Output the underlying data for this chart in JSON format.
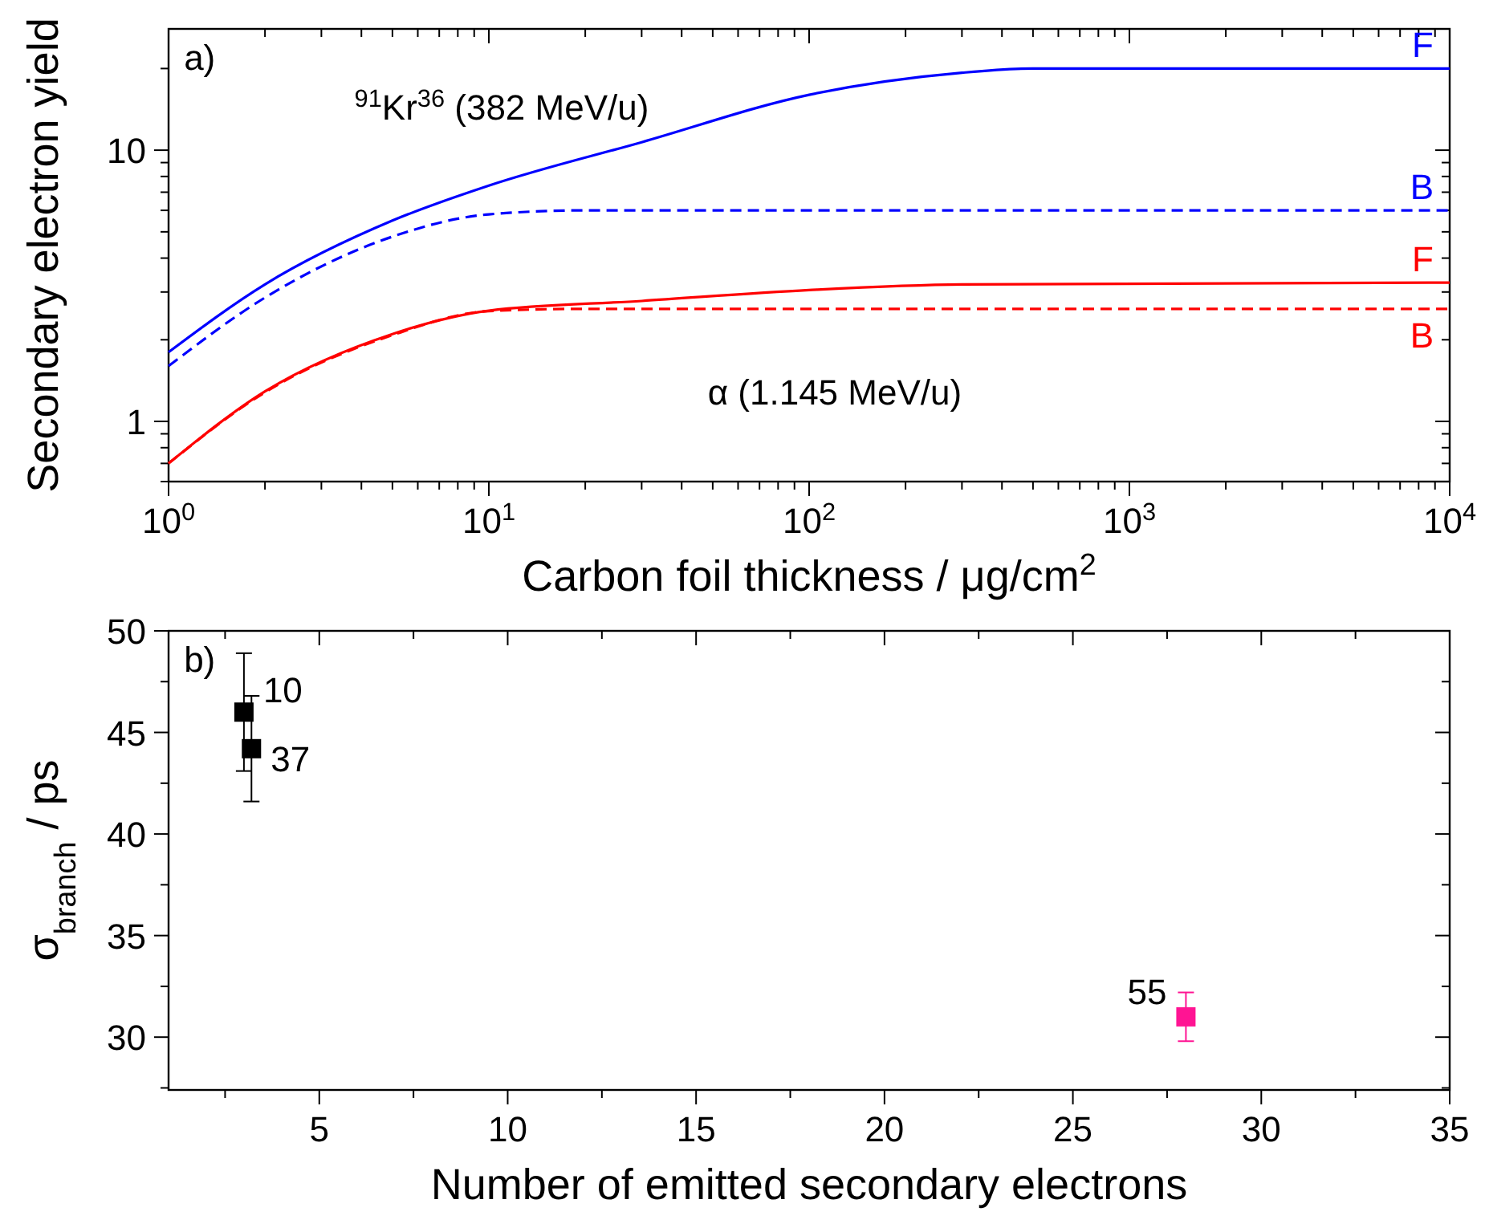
{
  "chart_data": [
    {
      "type": "line",
      "xlabel": "Carbon foil thickness / μg/cm$^{2}$",
      "ylabel": "Secondary electron yield",
      "log": "xy",
      "grid": false,
      "marker": "none",
      "xlim": [
        1,
        10000
      ],
      "ylim": [
        0.6,
        28
      ],
      "xticks": [
        {
          "value": 1,
          "label": "10$^{0}$"
        },
        {
          "value": 10,
          "label": "10$^{1}$"
        },
        {
          "value": 100,
          "label": "10$^{2}$"
        },
        {
          "value": 1000,
          "label": "10$^{3}$"
        },
        {
          "value": 10000,
          "label": "10$^{4}$"
        }
      ],
      "yticks": [
        1,
        10
      ],
      "series": [
        {
          "name": "F",
          "color": "#0000ff",
          "line_style": "solid",
          "x": [
            1,
            2,
            5,
            10,
            30,
            100,
            300,
            500,
            10000
          ],
          "values": [
            1.8,
            3.2,
            5.5,
            7.4,
            10.7,
            16,
            19.3,
            20,
            20
          ]
        },
        {
          "name": "B",
          "color": "#0000ff",
          "line_style": "dashed",
          "x": [
            1,
            2,
            5,
            10,
            20,
            10000
          ],
          "values": [
            1.6,
            2.86,
            4.8,
            5.8,
            6,
            6
          ]
        },
        {
          "name": "F",
          "color": "#ff0000",
          "line_style": "solid",
          "x": [
            1,
            2,
            5,
            10,
            30,
            100,
            300,
            10000
          ],
          "values": [
            0.7,
            1.29,
            2.1,
            2.56,
            2.78,
            3.05,
            3.2,
            3.25
          ]
        },
        {
          "name": "B",
          "color": "#ff0000",
          "line_style": "dashed",
          "x": [
            1,
            2,
            5,
            10,
            20,
            10000
          ],
          "values": [
            0.7,
            1.28,
            2.08,
            2.55,
            2.6,
            2.6
          ]
        }
      ],
      "annotations": [
        "a)",
        "$^{91}$Kr$^{36}$ (382 MeV/u)",
        "α (1.145 MeV/u)"
      ]
    },
    {
      "type": "scatter",
      "xlabel": "Number of emitted secondary electrons",
      "ylabel": "σ$_{branch}$ / ps",
      "grid": false,
      "marker": "square",
      "xlim": [
        1,
        35
      ],
      "ylim": [
        27.4,
        50
      ],
      "xticks": [
        5,
        10,
        15,
        20,
        25,
        30,
        35,
        {
          "value": 2.5,
          "label": null
        },
        {
          "value": 7.5,
          "label": null
        },
        {
          "value": 12.5,
          "label": null
        },
        {
          "value": 17.5,
          "label": null
        },
        {
          "value": 22.5,
          "label": null
        },
        {
          "value": 27.5,
          "label": null
        },
        {
          "value": 32.5,
          "label": null
        }
      ],
      "yticks": [
        30,
        35,
        40,
        45,
        50,
        {
          "value": 27.5,
          "label": null
        },
        {
          "value": 32.5,
          "label": null
        },
        {
          "value": 37.5,
          "label": null
        },
        {
          "value": 42.5,
          "label": null
        },
        {
          "value": 47.5,
          "label": null
        }
      ],
      "series": [
        {
          "color": "#000000",
          "x": [
            3,
            3.2
          ],
          "values": [
            46,
            44.2
          ],
          "errors": [
            [
              43.1,
              48.9
            ],
            [
              41.6,
              46.8
            ]
          ]
        },
        {
          "color": "#ff1493",
          "x": [
            28
          ],
          "values": [
            31
          ],
          "errors": [
            [
              29.8,
              32.2
            ]
          ]
        }
      ],
      "annotations": [
        "b)",
        {
          "text": "10",
          "x": 3,
          "y": 46
        },
        {
          "text": "37",
          "x": 3.2,
          "y": 44.2
        },
        {
          "text": "55",
          "x": 28,
          "y": 31
        }
      ]
    }
  ]
}
